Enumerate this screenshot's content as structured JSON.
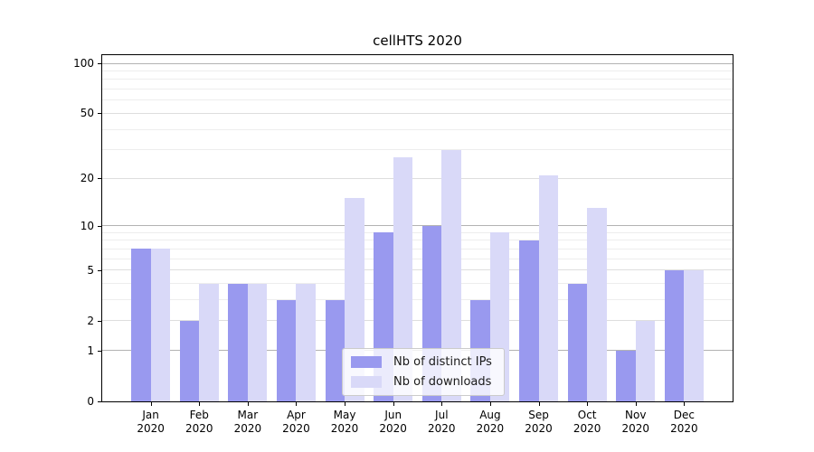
{
  "chart_data": {
    "type": "bar",
    "title": "cellHTS 2020",
    "categories": [
      "Jan",
      "Feb",
      "Mar",
      "Apr",
      "May",
      "Jun",
      "Jul",
      "Aug",
      "Sep",
      "Oct",
      "Nov",
      "Dec"
    ],
    "category_year": "2020",
    "series": [
      {
        "name": "Nb of distinct IPs",
        "color": "#9999ef",
        "values": [
          7,
          2,
          4,
          3,
          3,
          9,
          10,
          3,
          8,
          4,
          1,
          5
        ]
      },
      {
        "name": "Nb of downloads",
        "color": "#d9d9f8",
        "values": [
          7,
          4,
          4,
          4,
          15,
          27,
          30,
          9,
          21,
          13,
          2,
          5
        ]
      }
    ],
    "xlabel": "",
    "ylabel": "",
    "yscale": "log10(1+x)",
    "ylim": [
      0,
      101
    ],
    "yticks": [
      0,
      1,
      2,
      5,
      10,
      20,
      50,
      100
    ],
    "minor_gridlines": [
      3,
      4,
      6,
      7,
      8,
      9,
      30,
      40,
      60,
      70,
      80,
      90
    ],
    "grid": "horizontal",
    "legend_position": "lower-center-inside",
    "gridline_colors": {
      "decade": "#b3b3b3",
      "major": "#dedede",
      "minor": "#ededed"
    }
  }
}
